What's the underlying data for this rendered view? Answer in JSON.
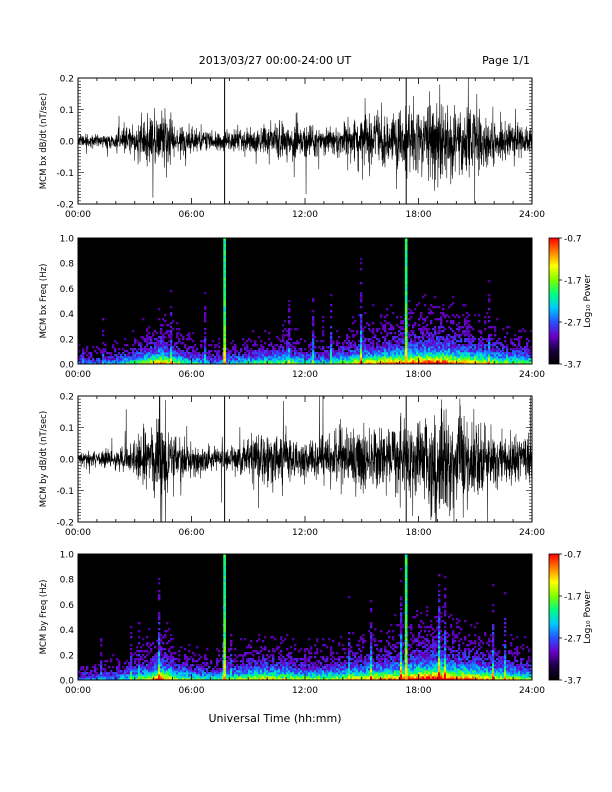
{
  "header": {
    "title": "2013/03/27  00:00-24:00 UT",
    "page": "Page 1/1"
  },
  "footer": {
    "xlabel": "Universal Time (hh:mm)"
  },
  "colorbar": {
    "label": "Log₁₀ Power",
    "ticks": [
      "-0.7",
      "-1.7",
      "-2.7",
      "-3.7"
    ],
    "range": [
      -3.7,
      -0.7
    ],
    "colormap": [
      "#000000",
      "#1a0040",
      "#6a00c8",
      "#2850ff",
      "#00c8ff",
      "#00ff80",
      "#80ff00",
      "#ffff00",
      "#ff8000",
      "#ff0000"
    ]
  },
  "chart_data": [
    {
      "type": "line",
      "ylabel": "MCM bx dB/dt (nT/sec)",
      "xlim": [
        0,
        24
      ],
      "ylim": [
        -0.2,
        0.2
      ],
      "xticks": [
        "00:00",
        "06:00",
        "12:00",
        "18:00",
        "24:00"
      ],
      "yticks": [
        "0.2",
        "0.1",
        "0.0",
        "-0.1",
        "-0.2"
      ],
      "spikes_hours": [
        7.75,
        17.35
      ],
      "amplitude_envelope": {
        "hours": [
          0,
          2,
          3,
          4,
          4.4,
          5,
          6,
          7,
          8,
          9,
          10,
          11,
          12,
          13,
          14,
          15,
          16,
          17,
          18,
          19,
          20,
          21,
          22,
          23,
          24
        ],
        "amp": [
          0.02,
          0.03,
          0.06,
          0.09,
          0.12,
          0.07,
          0.04,
          0.03,
          0.03,
          0.04,
          0.05,
          0.06,
          0.05,
          0.04,
          0.06,
          0.08,
          0.09,
          0.1,
          0.12,
          0.16,
          0.12,
          0.1,
          0.08,
          0.06,
          0.05
        ]
      }
    },
    {
      "type": "heatmap",
      "ylabel": "MCM bx Freq (Hz)",
      "xlim": [
        0,
        24
      ],
      "ylim": [
        0,
        1
      ],
      "xticks": [
        "00:00",
        "06:00",
        "12:00",
        "18:00",
        "24:00"
      ],
      "yticks": [
        "1.0",
        "0.8",
        "0.6",
        "0.4",
        "0.2",
        "0.0"
      ],
      "spikes_hours": [
        7.75,
        17.35
      ],
      "activity": {
        "hours": [
          0,
          2,
          3,
          4,
          4.4,
          5,
          6,
          7,
          8,
          9,
          10,
          11,
          12,
          13,
          14,
          15,
          16,
          17,
          18,
          19,
          20,
          21,
          22,
          23,
          24
        ],
        "level": [
          0.25,
          0.3,
          0.45,
          0.6,
          0.7,
          0.55,
          0.4,
          0.3,
          0.35,
          0.4,
          0.45,
          0.5,
          0.4,
          0.35,
          0.5,
          0.6,
          0.65,
          0.7,
          0.75,
          0.8,
          0.7,
          0.65,
          0.55,
          0.5,
          0.45
        ]
      }
    },
    {
      "type": "line",
      "ylabel": "MCM by dB/dt (nT/sec)",
      "xlim": [
        0,
        24
      ],
      "ylim": [
        -0.2,
        0.2
      ],
      "xticks": [
        "00:00",
        "06:00",
        "12:00",
        "18:00",
        "24:00"
      ],
      "yticks": [
        "0.2",
        "0.1",
        "0.0",
        "-0.1",
        "-0.2"
      ],
      "spikes_hours": [
        7.75,
        17.35
      ],
      "amplitude_envelope": {
        "hours": [
          0,
          2,
          3,
          4,
          4.4,
          5,
          6,
          7,
          8,
          9,
          10,
          11,
          12,
          13,
          14,
          15,
          16,
          17,
          18,
          19,
          20,
          21,
          22,
          23,
          24
        ],
        "amp": [
          0.025,
          0.03,
          0.07,
          0.1,
          0.2,
          0.09,
          0.05,
          0.04,
          0.04,
          0.07,
          0.1,
          0.09,
          0.06,
          0.07,
          0.09,
          0.11,
          0.1,
          0.11,
          0.14,
          0.2,
          0.16,
          0.12,
          0.09,
          0.08,
          0.07
        ]
      }
    },
    {
      "type": "heatmap",
      "ylabel": "MCM by Freq (Hz)",
      "xlim": [
        0,
        24
      ],
      "ylim": [
        0,
        1
      ],
      "xticks": [
        "00:00",
        "06:00",
        "12:00",
        "18:00",
        "24:00"
      ],
      "yticks": [
        "1.0",
        "0.8",
        "0.6",
        "0.4",
        "0.2",
        "0.0"
      ],
      "spikes_hours": [
        7.75,
        17.35
      ],
      "activity": {
        "hours": [
          0,
          2,
          3,
          4,
          4.4,
          5,
          6,
          7,
          8,
          9,
          10,
          11,
          12,
          13,
          14,
          15,
          16,
          17,
          18,
          19,
          20,
          21,
          22,
          23,
          24
        ],
        "level": [
          0.25,
          0.3,
          0.45,
          0.6,
          0.75,
          0.55,
          0.45,
          0.4,
          0.45,
          0.55,
          0.6,
          0.55,
          0.5,
          0.5,
          0.55,
          0.6,
          0.65,
          0.7,
          0.8,
          0.85,
          0.75,
          0.7,
          0.6,
          0.55,
          0.5
        ]
      }
    }
  ]
}
